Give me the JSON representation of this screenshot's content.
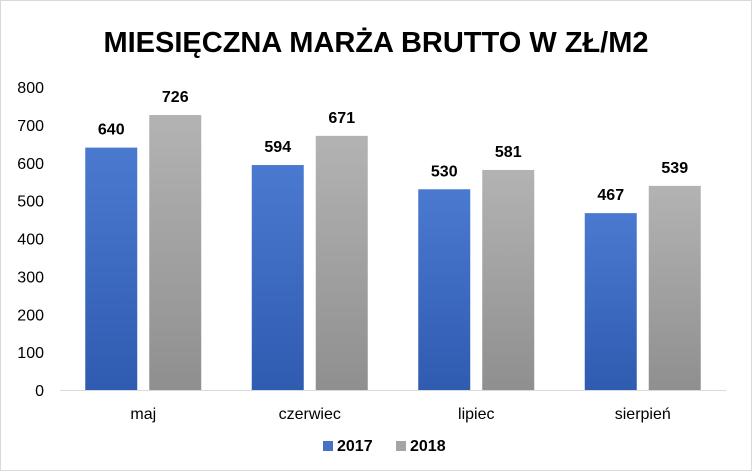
{
  "chart_data": {
    "type": "bar",
    "title": "MIESIĘCZNA MARŻA BRUTTO W  ZŁ/M2",
    "categories": [
      "maj",
      "czerwiec",
      "lipiec",
      "sierpień"
    ],
    "series": [
      {
        "name": "2017",
        "values": [
          640,
          594,
          530,
          467
        ],
        "color": "#4472c4"
      },
      {
        "name": "2018",
        "values": [
          726,
          671,
          581,
          539
        ],
        "color": "#a5a5a5"
      }
    ],
    "ylim": [
      0,
      800
    ],
    "yticks": [
      "0",
      "100",
      "200",
      "300",
      "400",
      "500",
      "600",
      "700",
      "800"
    ],
    "grid": false,
    "data_labels": true,
    "legend_position": "bottom"
  }
}
